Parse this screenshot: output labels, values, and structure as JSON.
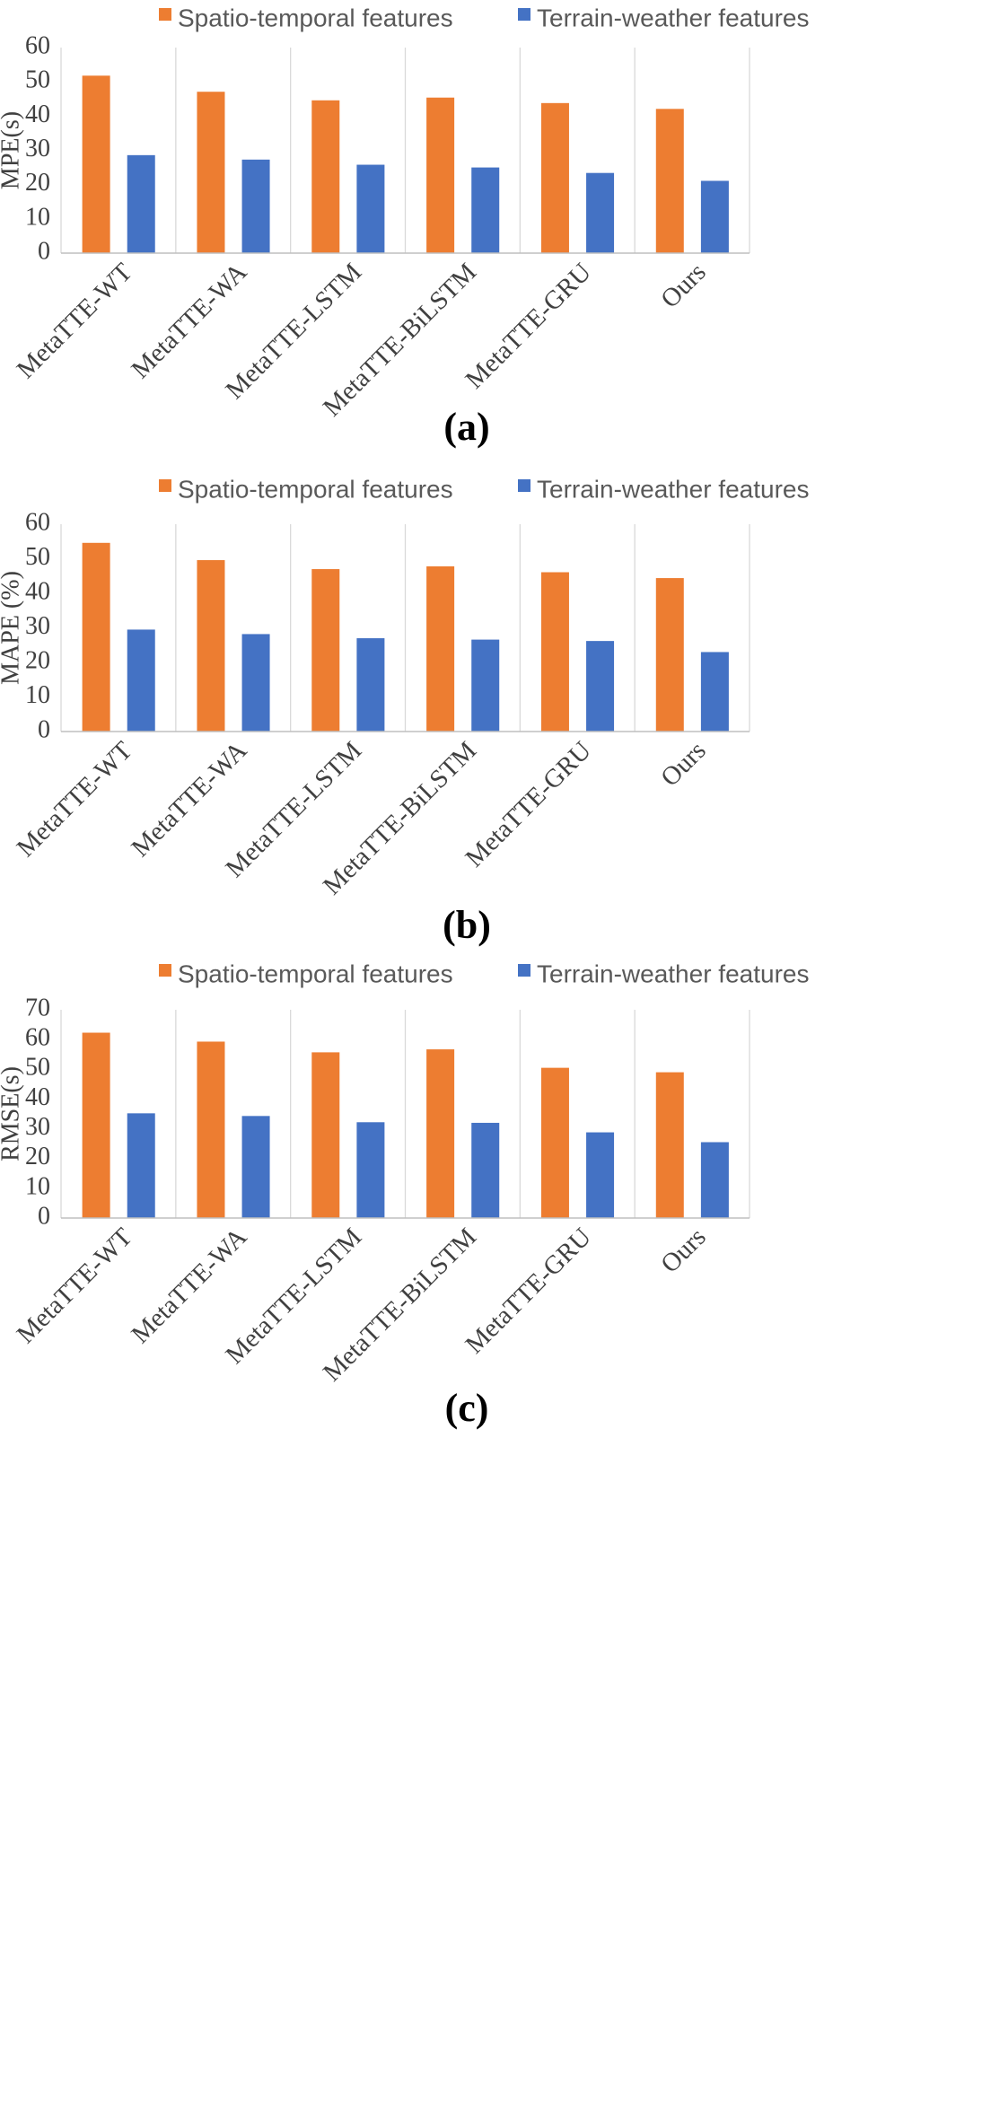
{
  "colors": {
    "spatio": "#ED7D31",
    "terrain": "#4472C4",
    "grid": "#D9D9D9",
    "axis": "#BFBFBF"
  },
  "chart_data": [
    {
      "type": "bar",
      "panel_label": "(a)",
      "legend": [
        "Spatio-temporal features",
        "Terrain-weather features"
      ],
      "categories": [
        "MetaTTE-WT",
        "MetaTTE-WA",
        "MetaTTE-LSTM",
        "MetaTTE-BiLSTM",
        "MetaTTE-GRU",
        "Ours"
      ],
      "series": [
        {
          "name": "Spatio-temporal features",
          "values": [
            51.8,
            47.1,
            44.6,
            45.4,
            43.8,
            42.1
          ]
        },
        {
          "name": "Terrain-weather features",
          "values": [
            28.6,
            27.3,
            25.8,
            25.0,
            23.4,
            21.1
          ]
        }
      ],
      "ylabel": "MPE(s)",
      "ylim": [
        0,
        60
      ],
      "yticks": [
        "0",
        "10",
        "20",
        "30",
        "40",
        "50",
        "60"
      ]
    },
    {
      "type": "bar",
      "panel_label": "(b)",
      "legend": [
        "Spatio-temporal features",
        "Terrain-weather features"
      ],
      "categories": [
        "MetaTTE-WT",
        "MetaTTE-WA",
        "MetaTTE-LSTM",
        "MetaTTE-BiLSTM",
        "MetaTTE-GRU",
        "Ours"
      ],
      "series": [
        {
          "name": "Spatio-temporal features",
          "values": [
            54.6,
            49.6,
            47.0,
            47.8,
            46.1,
            44.4
          ]
        },
        {
          "name": "Terrain-weather features",
          "values": [
            29.5,
            28.2,
            27.0,
            26.6,
            26.2,
            23.0
          ]
        }
      ],
      "ylabel": "MAPE (%)",
      "ylim": [
        0,
        60
      ],
      "yticks": [
        "0",
        "10",
        "20",
        "30",
        "40",
        "50",
        "60"
      ]
    },
    {
      "type": "bar",
      "panel_label": "(c)",
      "legend": [
        "Spatio-temporal features",
        "Terrain-weather features"
      ],
      "categories": [
        "MetaTTE-WT",
        "MetaTTE-WA",
        "MetaTTE-LSTM",
        "MetaTTE-BiLSTM",
        "MetaTTE-GRU",
        "Ours"
      ],
      "series": [
        {
          "name": "Spatio-temporal features",
          "values": [
            62.3,
            59.3,
            55.7,
            56.7,
            50.5,
            49.0
          ]
        },
        {
          "name": "Terrain-weather features",
          "values": [
            35.2,
            34.3,
            32.2,
            32.0,
            28.8,
            25.5
          ]
        }
      ],
      "ylabel": "RMSE(s)",
      "ylim": [
        0,
        70
      ],
      "yticks": [
        "0",
        "10",
        "20",
        "30",
        "40",
        "50",
        "60",
        "70"
      ]
    }
  ]
}
